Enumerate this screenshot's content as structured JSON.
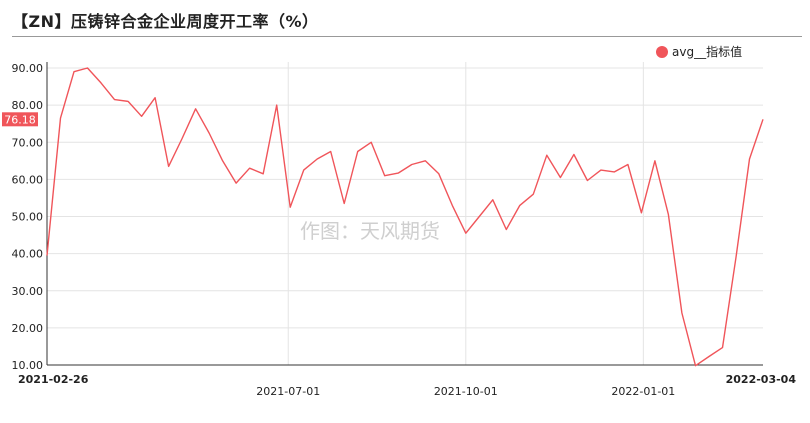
{
  "title": "【ZN】压铸锌合金企业周度开工率（%）",
  "watermark": "作图：天风期货",
  "legend": {
    "label": "avg__指标值",
    "color": "#f0555a"
  },
  "last_value_label": "76.18",
  "chart_data": {
    "type": "line",
    "ylim": [
      10,
      90
    ],
    "yticks": [
      "10.00",
      "20.00",
      "30.00",
      "40.00",
      "50.00",
      "60.00",
      "70.00",
      "80.00",
      "90.00"
    ],
    "x_tick_labels": [
      "2021-02-26",
      "2021-07-01",
      "2021-10-01",
      "2022-01-01",
      "2022-03-04"
    ],
    "grid": true,
    "legend_position": "top-right",
    "series": [
      {
        "name": "avg__指标值",
        "color": "#f0555a",
        "x": [
          "2021-02-26",
          "2021-03-05",
          "2021-03-12",
          "2021-03-19",
          "2021-03-26",
          "2021-04-02",
          "2021-04-09",
          "2021-04-16",
          "2021-04-23",
          "2021-04-30",
          "2021-05-07",
          "2021-05-14",
          "2021-05-21",
          "2021-05-28",
          "2021-06-04",
          "2021-06-11",
          "2021-06-18",
          "2021-06-25",
          "2021-07-02",
          "2021-07-09",
          "2021-07-16",
          "2021-07-23",
          "2021-07-30",
          "2021-08-06",
          "2021-08-13",
          "2021-08-20",
          "2021-08-27",
          "2021-09-03",
          "2021-09-10",
          "2021-09-17",
          "2021-09-24",
          "2021-10-01",
          "2021-10-08",
          "2021-10-15",
          "2021-10-22",
          "2021-10-29",
          "2021-11-05",
          "2021-11-12",
          "2021-11-19",
          "2021-11-26",
          "2021-12-03",
          "2021-12-10",
          "2021-12-17",
          "2021-12-24",
          "2021-12-31",
          "2022-01-07",
          "2022-01-14",
          "2022-01-21",
          "2022-01-28",
          "2022-02-04",
          "2022-02-11",
          "2022-02-18",
          "2022-02-25",
          "2022-03-04"
        ],
        "values": [
          39.5,
          76.5,
          89,
          90,
          86,
          81.5,
          81,
          77,
          82,
          63.5,
          71,
          79,
          72.5,
          65,
          59,
          63,
          61.5,
          80,
          52.5,
          62.5,
          65.5,
          67.5,
          53.5,
          67.5,
          70,
          61,
          61.7,
          64,
          65,
          61.5,
          53,
          45.5,
          50,
          54.5,
          46.5,
          53,
          56,
          66.5,
          60.5,
          66.7,
          59.7,
          62.5,
          62,
          64,
          51,
          65,
          50.5,
          24,
          9.8,
          12.3,
          14.7,
          39,
          65.5,
          76.18
        ]
      }
    ]
  }
}
